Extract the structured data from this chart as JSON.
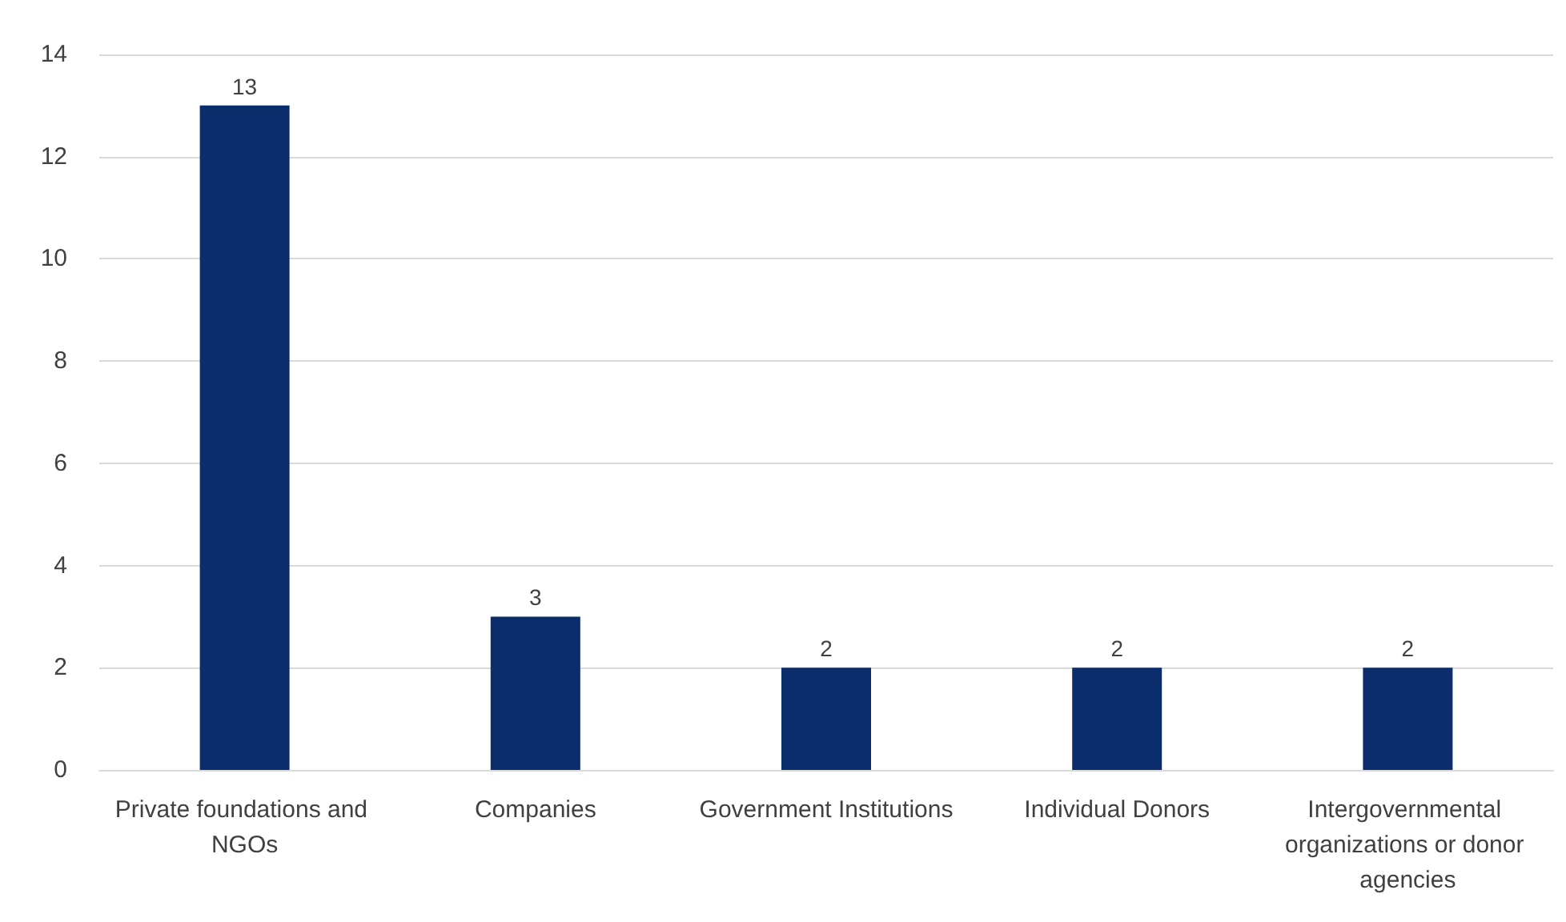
{
  "chart_data": {
    "type": "bar",
    "categories": [
      "Private foundations and NGOs",
      "Companies",
      "Government Institutions",
      "Individual Donors",
      "Intergovernmental organizations or donor agencies"
    ],
    "values": [
      13,
      3,
      2,
      2,
      2
    ],
    "color": "#0b2d6b",
    "ylim": [
      0,
      14
    ],
    "yticks": [
      0,
      2,
      4,
      6,
      8,
      10,
      12,
      14
    ],
    "grid": "y",
    "data_labels": true
  }
}
